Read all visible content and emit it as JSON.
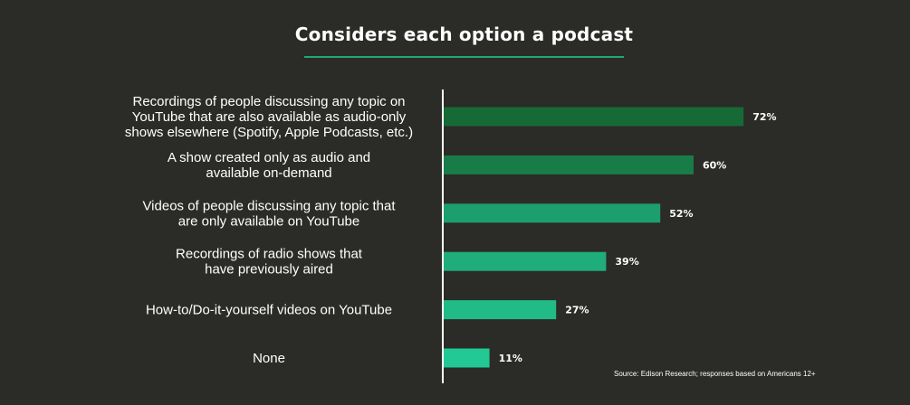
{
  "chart_data": {
    "type": "bar",
    "orientation": "horizontal",
    "title": "Considers each option a podcast",
    "categories": [
      [
        "Recordings of people discussing any topic on",
        "YouTube that are also available as audio-only",
        "shows elsewhere (Spotify, Apple Podcasts, etc.)"
      ],
      [
        "A show created only as audio and",
        "available on-demand"
      ],
      [
        "Videos of people discussing any topic that",
        "are only available on YouTube"
      ],
      [
        "Recordings of radio shows that",
        "have previously aired"
      ],
      [
        "How-to/Do-it-yourself videos on YouTube"
      ],
      [
        "None"
      ]
    ],
    "values": [
      72,
      60,
      52,
      39,
      27,
      11
    ],
    "value_labels": [
      "72%",
      "60%",
      "52%",
      "39%",
      "27%",
      "11%"
    ],
    "bar_colors": [
      "#166a36",
      "#187c47",
      "#1d9e6e",
      "#1fad7b",
      "#20bb86",
      "#22c995"
    ],
    "xlim": [
      0,
      100
    ],
    "grid": false,
    "legend": "none",
    "source": "Source: Edison Research; responses based on Americans 12+"
  },
  "colors": {
    "background": "#2b2b28",
    "accent": "#1fa67a",
    "text": "#ffffff"
  }
}
